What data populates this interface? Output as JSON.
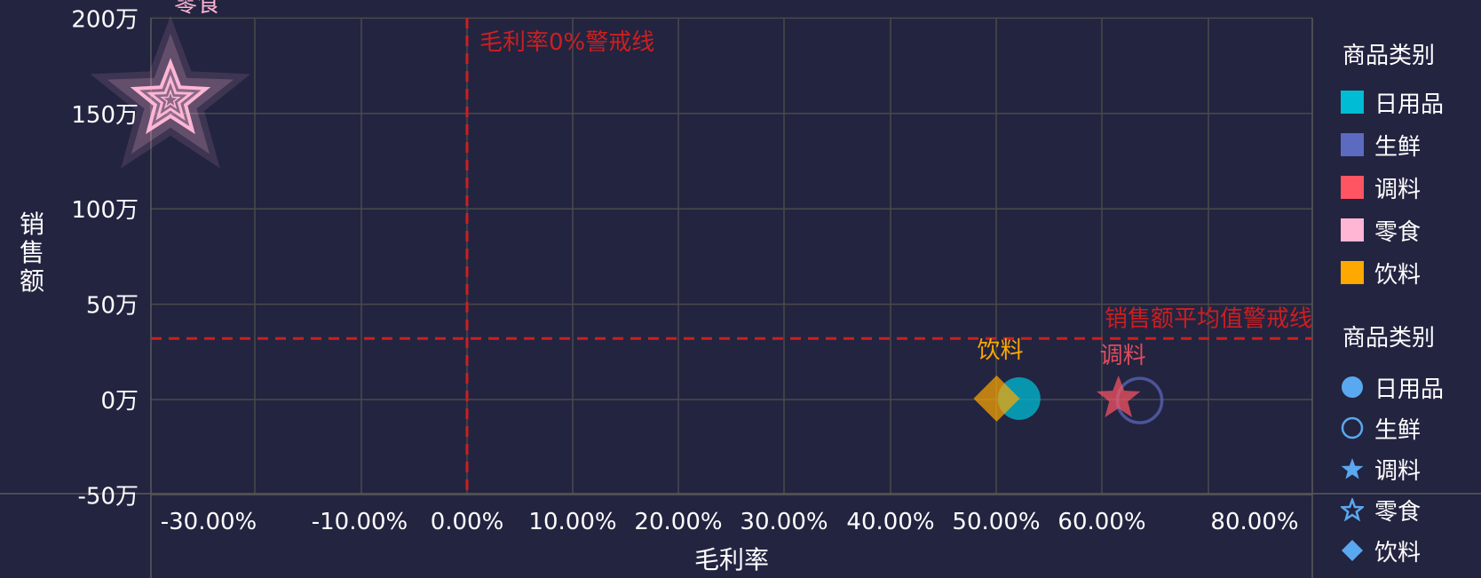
{
  "chart_data": {
    "type": "scatter",
    "xlabel": "毛利率",
    "ylabel": "销售额",
    "x_ticks": [
      "-30.00%",
      "-10.00%",
      "0.00%",
      "10.00%",
      "20.00%",
      "30.00%",
      "40.00%",
      "50.00%",
      "60.00%",
      "80.00%"
    ],
    "y_ticks": [
      "200万",
      "150万",
      "100万",
      "50万",
      "0万",
      "-50万"
    ],
    "y_range": [
      -50,
      200
    ],
    "y_unit": "万",
    "grid": true,
    "series": [
      {
        "name": "日用品",
        "color": "#00bcd4",
        "shape": "circle",
        "x": 51.2,
        "y": 0.5,
        "label": ""
      },
      {
        "name": "生鲜",
        "color": "#5c6bc0",
        "shape": "circle-hollow",
        "x": 63.5,
        "y": -0.5,
        "label": ""
      },
      {
        "name": "调料",
        "color": "#ff5562",
        "shape": "star",
        "x": 61.5,
        "y": 0.5,
        "label": "调料"
      },
      {
        "name": "零食",
        "color": "#ffb6d5",
        "shape": "star-hollow",
        "x": -28.0,
        "y": 157,
        "label": "零食"
      },
      {
        "name": "饮料",
        "color": "#ffa800",
        "shape": "diamond",
        "x": 50.0,
        "y": 0.5,
        "label": "饮料"
      }
    ],
    "reference_lines": [
      {
        "axis": "x",
        "value": 0,
        "label": "毛利率0%警戒线",
        "color": "#cc1f1f"
      },
      {
        "axis": "y",
        "value": 32,
        "label": "销售额平均值警戒线",
        "color": "#cc1f1f"
      }
    ]
  },
  "legend_color": {
    "title": "商品类别",
    "items": [
      {
        "label": "日用品",
        "color": "#00bcd4"
      },
      {
        "label": "生鲜",
        "color": "#5c6bc0"
      },
      {
        "label": "调料",
        "color": "#ff5562"
      },
      {
        "label": "零食",
        "color": "#ffb6d5"
      },
      {
        "label": "饮料",
        "color": "#ffa800"
      }
    ]
  },
  "legend_shape": {
    "title": "商品类别",
    "color": "#5aa8ef",
    "items": [
      {
        "label": "日用品",
        "icon": "circle-icon"
      },
      {
        "label": "生鲜",
        "icon": "circle-hollow-icon"
      },
      {
        "label": "调料",
        "icon": "star-icon"
      },
      {
        "label": "零食",
        "icon": "star-hollow-icon"
      },
      {
        "label": "饮料",
        "icon": "diamond-icon"
      }
    ]
  },
  "style": {
    "background": "#232440",
    "grid_color": "#4a4a4a",
    "text_color": "#ffffff",
    "ref_color": "#cc1f1f"
  }
}
